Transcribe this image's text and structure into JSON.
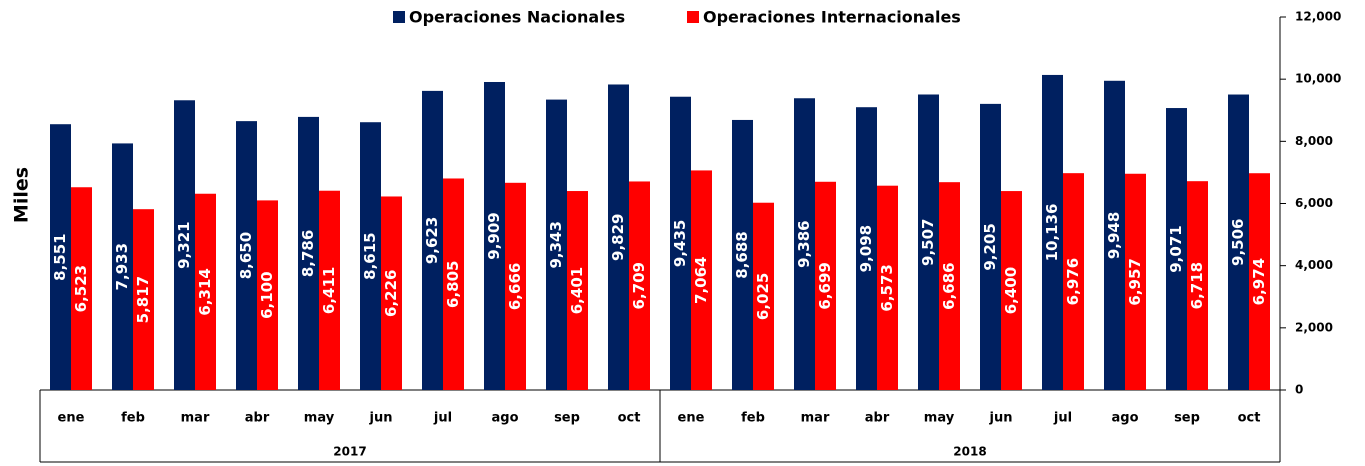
{
  "chart_data": {
    "type": "bar",
    "y_label": "Miles",
    "groups": [
      {
        "label": "2017",
        "categories": [
          "ene",
          "feb",
          "mar",
          "abr",
          "may",
          "jun",
          "jul",
          "ago",
          "sep",
          "oct"
        ]
      },
      {
        "label": "2018",
        "categories": [
          "ene",
          "feb",
          "mar",
          "abr",
          "may",
          "jun",
          "jul",
          "ago",
          "sep",
          "oct"
        ]
      }
    ],
    "series": [
      {
        "name": "Operaciones Nacionales",
        "color": "#002060",
        "values": [
          8551,
          7933,
          9321,
          8650,
          8786,
          8615,
          9623,
          9909,
          9343,
          9829,
          9435,
          8688,
          9386,
          9098,
          9507,
          9205,
          10136,
          9948,
          9071,
          9506
        ],
        "value_labels": [
          "8,551",
          "7,933",
          "9,321",
          "8,650",
          "8,786",
          "8,615",
          "9,623",
          "9,909",
          "9,343",
          "9,829",
          "9,435",
          "8,688",
          "9,386",
          "9,098",
          "9,507",
          "9,205",
          "10,136",
          "9,948",
          "9,071",
          "9,506"
        ]
      },
      {
        "name": "Operaciones Internacionales",
        "color": "#ff0000",
        "values": [
          6523,
          5817,
          6314,
          6100,
          6411,
          6226,
          6805,
          6666,
          6401,
          6709,
          7064,
          6025,
          6699,
          6573,
          6686,
          6400,
          6976,
          6957,
          6718,
          6974
        ],
        "value_labels": [
          "6,523",
          "5,817",
          "6,314",
          "6,100",
          "6,411",
          "6,226",
          "6,805",
          "6,666",
          "6,401",
          "6,709",
          "7,064",
          "6,025",
          "6,699",
          "6,573",
          "6,686",
          "6,400",
          "6,976",
          "6,957",
          "6,718",
          "6,974"
        ]
      }
    ],
    "ylim": [
      0,
      12000
    ],
    "yticks": [
      0,
      {
        "value": 2000,
        "label": "2,000"
      },
      {
        "value": 4000,
        "label": "4,000"
      },
      {
        "value": 6000,
        "label": "6,000"
      },
      {
        "value": 8000,
        "label": "8,000"
      },
      {
        "value": 10000,
        "label": "10,000"
      },
      {
        "value": 12000,
        "label": "12,000"
      }
    ],
    "y_axis_side": "right",
    "legend": "top",
    "grid": false
  }
}
